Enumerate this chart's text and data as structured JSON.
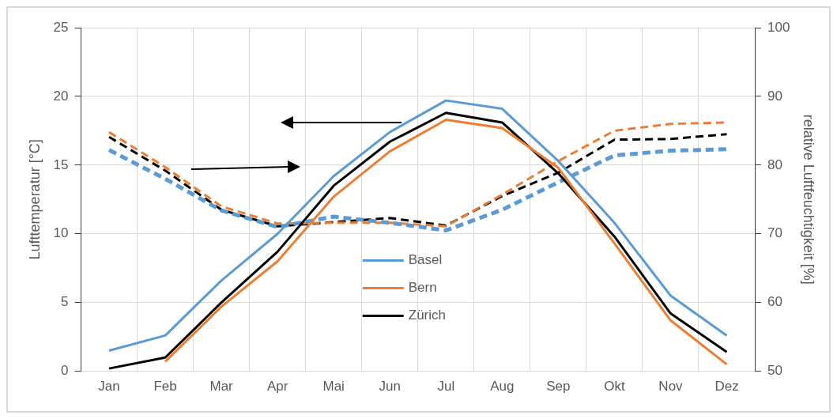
{
  "chart_data": {
    "type": "line",
    "categories": [
      "Jan",
      "Feb",
      "Mar",
      "Apr",
      "Mai",
      "Jun",
      "Jul",
      "Aug",
      "Sep",
      "Okt",
      "Nov",
      "Dez"
    ],
    "ylabel": "Lufttemperatur [°C]",
    "y2label": "relative Luftfeuchtigkeit [%]",
    "ylim": [
      0,
      25
    ],
    "yticks": [
      0,
      5,
      10,
      15,
      20,
      25
    ],
    "y2lim": [
      50,
      100
    ],
    "y2ticks": [
      50,
      60,
      70,
      80,
      90,
      100
    ],
    "grid": true,
    "legend": "bottom",
    "line_style": "solid",
    "marker": "none",
    "series": [
      {
        "name": "Basel",
        "color": "#5b9bd5",
        "values": [
          1.5,
          2.6,
          6.6,
          10.0,
          14.2,
          17.4,
          19.7,
          19.1,
          15.3,
          10.8,
          5.5,
          2.6
        ]
      },
      {
        "name": "Bern",
        "color": "#ed7d31",
        "values": [
          null,
          0.7,
          4.7,
          8.0,
          12.7,
          16.0,
          18.3,
          17.7,
          14.8,
          9.3,
          3.7,
          0.5
        ]
      },
      {
        "name": "Zürich",
        "color": "#000000",
        "values": [
          0.2,
          1.0,
          5.0,
          8.7,
          13.5,
          16.7,
          18.8,
          18.1,
          14.4,
          9.8,
          4.2,
          1.4
        ]
      },
      {
        "color": "#5b9bd5",
        "axis": "y2",
        "line_style": "dashed",
        "values": [
          82.2,
          78.0,
          73.4,
          71.0,
          72.5,
          71.6,
          70.5,
          73.5,
          77.5,
          81.4,
          82.1,
          82.3
        ]
      },
      {
        "color": "#ed7d31",
        "axis": "y2",
        "line_style": "dashed",
        "values": [
          84.8,
          79.7,
          74.0,
          71.5,
          71.6,
          71.6,
          71.1,
          75.7,
          80.6,
          85.0,
          86.0,
          86.2
        ]
      },
      {
        "color": "#000000",
        "axis": "y2",
        "line_style": "dashed",
        "values": [
          84.1,
          79.2,
          73.5,
          71.1,
          71.7,
          72.3,
          71.2,
          75.5,
          78.9,
          83.7,
          83.8,
          84.5
        ]
      }
    ]
  }
}
